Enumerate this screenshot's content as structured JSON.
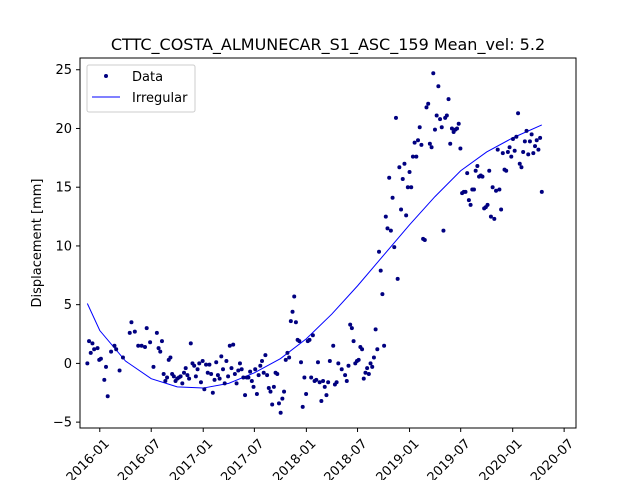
{
  "chart_data": {
    "type": "scatter",
    "title": "CTTC_COSTA_ALMUNECAR_S1_ASC_159     Mean_vel: 5.2",
    "xlabel": "",
    "ylabel": "Displacement [mm]",
    "ylim": [
      -5.5,
      26
    ],
    "xlim": [
      "2015-10-23",
      "2020-08-12"
    ],
    "x_ticks": [
      "2016-01",
      "2016-07",
      "2017-01",
      "2017-07",
      "2018-01",
      "2018-07",
      "2019-01",
      "2019-07",
      "2020-01",
      "2020-07"
    ],
    "y_ticks": [
      -5,
      0,
      5,
      10,
      15,
      20,
      25
    ],
    "grid": false,
    "legend_position": "top-left",
    "series": [
      {
        "name": "Data",
        "kind": "points",
        "color": "#000080",
        "points": [
          [
            "2015-11-18",
            0.0
          ],
          [
            "2015-11-24",
            1.9
          ],
          [
            "2015-11-30",
            0.9
          ],
          [
            "2015-12-06",
            1.7
          ],
          [
            "2015-12-12",
            1.2
          ],
          [
            "2015-12-24",
            1.3
          ],
          [
            "2015-12-30",
            0.3
          ],
          [
            "2016-01-05",
            0.4
          ],
          [
            "2016-01-17",
            -1.4
          ],
          [
            "2016-01-23",
            -0.3
          ],
          [
            "2016-01-29",
            -2.8
          ],
          [
            "2016-02-10",
            1.0
          ],
          [
            "2016-02-22",
            1.5
          ],
          [
            "2016-02-28",
            1.2
          ],
          [
            "2016-03-11",
            -0.6
          ],
          [
            "2016-03-23",
            0.5
          ],
          [
            "2016-04-16",
            2.6
          ],
          [
            "2016-04-22",
            3.5
          ],
          [
            "2016-05-04",
            2.7
          ],
          [
            "2016-05-16",
            1.5
          ],
          [
            "2016-05-28",
            1.5
          ],
          [
            "2016-06-09",
            1.4
          ],
          [
            "2016-06-15",
            3.0
          ],
          [
            "2016-06-27",
            1.8
          ],
          [
            "2016-07-09",
            -0.3
          ],
          [
            "2016-07-21",
            2.6
          ],
          [
            "2016-07-27",
            1.3
          ],
          [
            "2016-08-02",
            1.0
          ],
          [
            "2016-08-08",
            1.9
          ],
          [
            "2016-08-14",
            -0.9
          ],
          [
            "2016-08-20",
            -1.5
          ],
          [
            "2016-08-26",
            -1.2
          ],
          [
            "2016-09-01",
            0.3
          ],
          [
            "2016-09-07",
            0.5
          ],
          [
            "2016-09-13",
            -0.9
          ],
          [
            "2016-09-19",
            -1.1
          ],
          [
            "2016-09-25",
            -1.5
          ],
          [
            "2016-10-01",
            -1.3
          ],
          [
            "2016-10-07",
            -1.2
          ],
          [
            "2016-10-13",
            -1.1
          ],
          [
            "2016-10-19",
            -1.7
          ],
          [
            "2016-10-25",
            -0.8
          ],
          [
            "2016-10-31",
            -0.4
          ],
          [
            "2016-11-06",
            -1.0
          ],
          [
            "2016-11-12",
            -1.3
          ],
          [
            "2016-11-18",
            1.7
          ],
          [
            "2016-11-24",
            0.0
          ],
          [
            "2016-11-30",
            -0.2
          ],
          [
            "2016-12-06",
            -1.1
          ],
          [
            "2016-12-12",
            -0.5
          ],
          [
            "2016-12-18",
            0.0
          ],
          [
            "2016-12-24",
            -1.6
          ],
          [
            "2016-12-30",
            0.2
          ],
          [
            "2017-01-05",
            -2.2
          ],
          [
            "2017-01-11",
            -0.1
          ],
          [
            "2017-01-17",
            -0.8
          ],
          [
            "2017-01-23",
            -0.1
          ],
          [
            "2017-01-29",
            -0.9
          ],
          [
            "2017-02-04",
            -2.5
          ],
          [
            "2017-02-10",
            -1.4
          ],
          [
            "2017-02-16",
            0.1
          ],
          [
            "2017-02-22",
            -1.0
          ],
          [
            "2017-02-28",
            -1.3
          ],
          [
            "2017-03-06",
            0.6
          ],
          [
            "2017-03-12",
            -0.5
          ],
          [
            "2017-03-18",
            -1.7
          ],
          [
            "2017-03-24",
            0.2
          ],
          [
            "2017-03-30",
            -1.1
          ],
          [
            "2017-04-05",
            1.5
          ],
          [
            "2017-04-11",
            -0.4
          ],
          [
            "2017-04-17",
            1.6
          ],
          [
            "2017-04-23",
            -0.9
          ],
          [
            "2017-04-29",
            -1.7
          ],
          [
            "2017-05-05",
            -0.6
          ],
          [
            "2017-05-11",
            0.0
          ],
          [
            "2017-05-17",
            -0.5
          ],
          [
            "2017-05-23",
            -1.2
          ],
          [
            "2017-05-29",
            -2.7
          ],
          [
            "2017-06-04",
            -1.2
          ],
          [
            "2017-06-10",
            -1.2
          ],
          [
            "2017-06-16",
            -0.7
          ],
          [
            "2017-06-22",
            -1.5
          ],
          [
            "2017-06-28",
            -2.0
          ],
          [
            "2017-07-04",
            -0.5
          ],
          [
            "2017-07-10",
            -2.6
          ],
          [
            "2017-07-16",
            -1.0
          ],
          [
            "2017-07-22",
            -0.2
          ],
          [
            "2017-07-28",
            0.2
          ],
          [
            "2017-08-03",
            -0.8
          ],
          [
            "2017-08-09",
            0.7
          ],
          [
            "2017-08-15",
            -1.0
          ],
          [
            "2017-08-21",
            -2.1
          ],
          [
            "2017-08-27",
            -2.4
          ],
          [
            "2017-09-02",
            -3.5
          ],
          [
            "2017-09-08",
            -2.0
          ],
          [
            "2017-09-14",
            -0.8
          ],
          [
            "2017-09-20",
            -0.9
          ],
          [
            "2017-09-26",
            -3.4
          ],
          [
            "2017-10-02",
            -4.2
          ],
          [
            "2017-10-08",
            -3.0
          ],
          [
            "2017-10-14",
            -2.4
          ],
          [
            "2017-10-20",
            0.3
          ],
          [
            "2017-10-26",
            0.9
          ],
          [
            "2017-11-01",
            0.5
          ],
          [
            "2017-11-07",
            3.6
          ],
          [
            "2017-11-13",
            4.4
          ],
          [
            "2017-11-19",
            5.7
          ],
          [
            "2017-11-25",
            3.5
          ],
          [
            "2017-12-01",
            2.0
          ],
          [
            "2017-12-07",
            1.9
          ],
          [
            "2017-12-13",
            0.1
          ],
          [
            "2017-12-19",
            -3.7
          ],
          [
            "2017-12-25",
            -1.2
          ],
          [
            "2017-12-31",
            -2.6
          ],
          [
            "2018-01-06",
            1.9
          ],
          [
            "2018-01-12",
            2.0
          ],
          [
            "2018-01-18",
            -1.2
          ],
          [
            "2018-01-24",
            2.4
          ],
          [
            "2018-01-30",
            -1.5
          ],
          [
            "2018-02-05",
            -1.4
          ],
          [
            "2018-02-11",
            0.1
          ],
          [
            "2018-02-17",
            -1.6
          ],
          [
            "2018-02-23",
            -3.2
          ],
          [
            "2018-03-01",
            -1.5
          ],
          [
            "2018-03-07",
            -2.0
          ],
          [
            "2018-03-13",
            -2.7
          ],
          [
            "2018-03-19",
            -1.6
          ],
          [
            "2018-03-25",
            0.2
          ],
          [
            "2018-04-06",
            1.5
          ],
          [
            "2018-04-12",
            -1.8
          ],
          [
            "2018-04-18",
            -1.6
          ],
          [
            "2018-04-24",
            0.0
          ],
          [
            "2018-05-06",
            -0.5
          ],
          [
            "2018-05-18",
            -1.0
          ],
          [
            "2018-05-24",
            -1.5
          ],
          [
            "2018-05-30",
            -0.2
          ],
          [
            "2018-06-05",
            3.3
          ],
          [
            "2018-06-11",
            3.0
          ],
          [
            "2018-06-17",
            1.9
          ],
          [
            "2018-06-23",
            0.0
          ],
          [
            "2018-06-29",
            0.2
          ],
          [
            "2018-07-05",
            0.3
          ],
          [
            "2018-07-11",
            1.4
          ],
          [
            "2018-07-17",
            1.2
          ],
          [
            "2018-07-23",
            -1.3
          ],
          [
            "2018-07-29",
            -0.8
          ],
          [
            "2018-08-04",
            -0.4
          ],
          [
            "2018-08-10",
            -0.9
          ],
          [
            "2018-08-16",
            0.0
          ],
          [
            "2018-08-22",
            -0.3
          ],
          [
            "2018-08-28",
            0.5
          ],
          [
            "2018-09-03",
            2.9
          ],
          [
            "2018-09-09",
            1.2
          ],
          [
            "2018-09-15",
            9.5
          ],
          [
            "2018-09-21",
            7.9
          ],
          [
            "2018-09-27",
            5.9
          ],
          [
            "2018-10-03",
            1.5
          ],
          [
            "2018-10-09",
            12.5
          ],
          [
            "2018-10-15",
            11.5
          ],
          [
            "2018-10-21",
            15.8
          ],
          [
            "2018-10-27",
            11.3
          ],
          [
            "2018-11-02",
            14.1
          ],
          [
            "2018-11-08",
            9.9
          ],
          [
            "2018-11-14",
            20.9
          ],
          [
            "2018-11-20",
            7.2
          ],
          [
            "2018-11-26",
            16.7
          ],
          [
            "2018-12-02",
            13.1
          ],
          [
            "2018-12-08",
            15.7
          ],
          [
            "2018-12-14",
            17.0
          ],
          [
            "2018-12-20",
            12.6
          ],
          [
            "2018-12-26",
            15.0
          ],
          [
            "2019-01-01",
            16.3
          ],
          [
            "2019-01-07",
            15.0
          ],
          [
            "2019-01-13",
            17.6
          ],
          [
            "2019-01-19",
            18.8
          ],
          [
            "2019-01-25",
            17.6
          ],
          [
            "2019-01-31",
            19.0
          ],
          [
            "2019-02-06",
            20.1
          ],
          [
            "2019-02-12",
            18.6
          ],
          [
            "2019-02-18",
            10.6
          ],
          [
            "2019-02-24",
            10.5
          ],
          [
            "2019-03-02",
            21.8
          ],
          [
            "2019-03-08",
            22.1
          ],
          [
            "2019-03-14",
            18.7
          ],
          [
            "2019-03-20",
            18.4
          ],
          [
            "2019-03-26",
            24.7
          ],
          [
            "2019-04-01",
            19.9
          ],
          [
            "2019-04-07",
            21.1
          ],
          [
            "2019-04-13",
            23.6
          ],
          [
            "2019-04-19",
            20.8
          ],
          [
            "2019-04-25",
            20.1
          ],
          [
            "2019-05-01",
            11.3
          ],
          [
            "2019-05-07",
            20.9
          ],
          [
            "2019-05-13",
            21.1
          ],
          [
            "2019-05-19",
            22.5
          ],
          [
            "2019-05-25",
            18.7
          ],
          [
            "2019-05-31",
            20.0
          ],
          [
            "2019-06-06",
            19.7
          ],
          [
            "2019-06-12",
            19.9
          ],
          [
            "2019-06-18",
            20.0
          ],
          [
            "2019-06-24",
            20.4
          ],
          [
            "2019-06-30",
            18.3
          ],
          [
            "2019-07-06",
            14.5
          ],
          [
            "2019-07-12",
            14.6
          ],
          [
            "2019-07-18",
            14.6
          ],
          [
            "2019-07-24",
            16.2
          ],
          [
            "2019-07-30",
            13.9
          ],
          [
            "2019-08-05",
            13.5
          ],
          [
            "2019-08-11",
            14.8
          ],
          [
            "2019-08-17",
            14.8
          ],
          [
            "2019-08-23",
            16.4
          ],
          [
            "2019-08-29",
            16.8
          ],
          [
            "2019-09-04",
            15.9
          ],
          [
            "2019-09-10",
            16.0
          ],
          [
            "2019-09-16",
            15.9
          ],
          [
            "2019-09-22",
            13.2
          ],
          [
            "2019-09-28",
            13.3
          ],
          [
            "2019-10-04",
            13.5
          ],
          [
            "2019-10-10",
            16.4
          ],
          [
            "2019-10-16",
            12.5
          ],
          [
            "2019-10-22",
            15.0
          ],
          [
            "2019-10-28",
            12.3
          ],
          [
            "2019-11-03",
            14.7
          ],
          [
            "2019-11-09",
            18.2
          ],
          [
            "2019-11-15",
            14.8
          ],
          [
            "2019-11-21",
            13.1
          ],
          [
            "2019-11-27",
            17.9
          ],
          [
            "2019-12-03",
            16.5
          ],
          [
            "2019-12-09",
            16.4
          ],
          [
            "2019-12-15",
            18.0
          ],
          [
            "2019-12-21",
            18.4
          ],
          [
            "2019-12-27",
            17.6
          ],
          [
            "2020-01-02",
            19.1
          ],
          [
            "2020-01-08",
            18.1
          ],
          [
            "2020-01-14",
            19.3
          ],
          [
            "2020-01-20",
            21.3
          ],
          [
            "2020-01-26",
            17.0
          ],
          [
            "2020-02-01",
            16.7
          ],
          [
            "2020-02-07",
            18.0
          ],
          [
            "2020-02-13",
            18.9
          ],
          [
            "2020-02-19",
            19.8
          ],
          [
            "2020-02-25",
            17.8
          ],
          [
            "2020-03-02",
            18.9
          ],
          [
            "2020-03-08",
            19.5
          ],
          [
            "2020-03-14",
            17.9
          ],
          [
            "2020-03-20",
            18.5
          ],
          [
            "2020-03-26",
            19.0
          ],
          [
            "2020-04-01",
            18.2
          ],
          [
            "2020-04-07",
            19.2
          ],
          [
            "2020-04-13",
            14.6
          ]
        ]
      },
      {
        "name": "Irregular",
        "kind": "line",
        "color": "#0000ff",
        "points": [
          [
            "2015-11-18",
            5.1
          ],
          [
            "2016-01-01",
            2.8
          ],
          [
            "2016-04-01",
            0.2
          ],
          [
            "2016-07-01",
            -1.3
          ],
          [
            "2016-10-01",
            -2.0
          ],
          [
            "2017-01-01",
            -2.1
          ],
          [
            "2017-04-01",
            -1.7
          ],
          [
            "2017-07-01",
            -0.8
          ],
          [
            "2017-10-01",
            0.4
          ],
          [
            "2018-01-01",
            2.1
          ],
          [
            "2018-04-01",
            4.2
          ],
          [
            "2018-07-01",
            6.6
          ],
          [
            "2018-10-01",
            9.2
          ],
          [
            "2019-01-01",
            11.8
          ],
          [
            "2019-04-01",
            14.2
          ],
          [
            "2019-07-01",
            16.4
          ],
          [
            "2019-10-01",
            18.0
          ],
          [
            "2020-01-01",
            19.2
          ],
          [
            "2020-04-13",
            20.3
          ]
        ]
      }
    ]
  }
}
